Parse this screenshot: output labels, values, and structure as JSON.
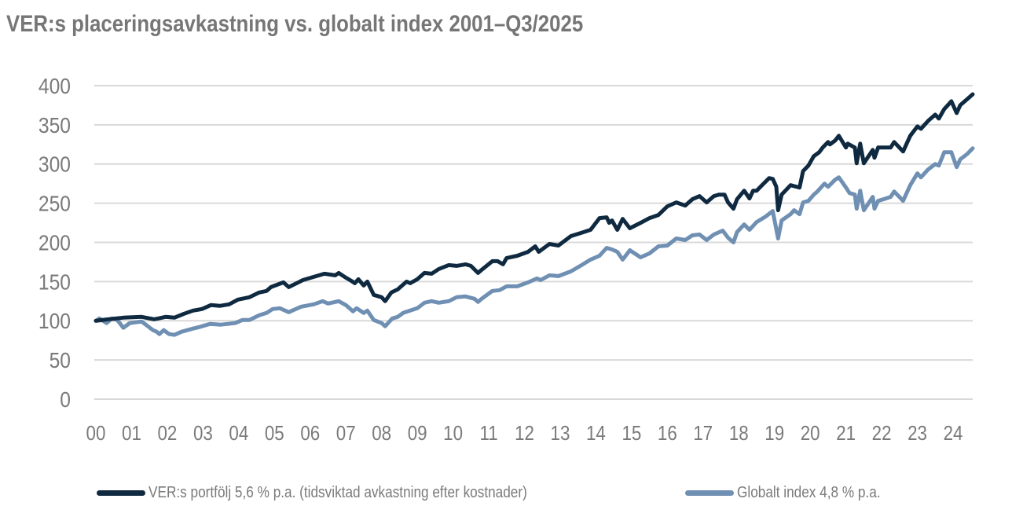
{
  "chart_data": {
    "type": "line",
    "title": "VER:s placeringsavkastning vs. globalt index 2001–Q3/2025",
    "xlabel": "",
    "ylabel": "",
    "ylim": [
      0,
      400
    ],
    "xlim": [
      0,
      24.6
    ],
    "yticks": [
      0,
      50,
      100,
      150,
      200,
      250,
      300,
      350,
      400
    ],
    "xtick_labels": [
      "00",
      "01",
      "02",
      "03",
      "04",
      "05",
      "06",
      "07",
      "08",
      "09",
      "10",
      "11",
      "12",
      "13",
      "14",
      "15",
      "16",
      "17",
      "18",
      "19",
      "20",
      "21",
      "22",
      "23",
      "24"
    ],
    "grid": "horizontal",
    "legend_position": "bottom",
    "series": [
      {
        "name": "VER:s portfölj 5,6 % p.a. (tidsviktad avkastning efter kostnader)",
        "color": "#0f2a40",
        "x": [
          0,
          0.35,
          0.77,
          1.28,
          1.63,
          1.75,
          1.95,
          2.2,
          2.47,
          2.72,
          2.97,
          3.22,
          3.47,
          3.73,
          3.98,
          4.3,
          4.57,
          4.78,
          4.9,
          5.25,
          5.4,
          5.8,
          6.1,
          6.4,
          6.7,
          6.8,
          7.0,
          7.15,
          7.25,
          7.35,
          7.5,
          7.6,
          7.78,
          8.0,
          8.1,
          8.27,
          8.45,
          8.7,
          8.8,
          9.0,
          9.2,
          9.4,
          9.6,
          9.88,
          10.1,
          10.35,
          10.5,
          10.7,
          10.8,
          11.1,
          11.25,
          11.4,
          11.5,
          11.8,
          12.1,
          12.3,
          12.4,
          12.7,
          12.95,
          13.3,
          13.65,
          13.85,
          14.1,
          14.3,
          14.37,
          14.45,
          14.6,
          14.75,
          14.95,
          15.25,
          15.5,
          15.75,
          16.0,
          16.25,
          16.5,
          16.7,
          16.9,
          17.1,
          17.3,
          17.45,
          17.6,
          17.7,
          17.85,
          17.95,
          18.15,
          18.3,
          18.4,
          18.5,
          18.65,
          18.85,
          18.95,
          19.05,
          19.1,
          19.2,
          19.45,
          19.7,
          19.8,
          19.95,
          20.1,
          20.25,
          20.35,
          20.5,
          20.55,
          20.7,
          20.8,
          21.0,
          21.05,
          21.25,
          21.3,
          21.4,
          21.5,
          21.75,
          21.8,
          21.9,
          22.25,
          22.35,
          22.6,
          22.8,
          23.0,
          23.1,
          23.3,
          23.5,
          23.6,
          23.75,
          23.95,
          24.1,
          24.2,
          24.4,
          24.55
        ],
        "y": [
          100,
          102,
          104,
          105,
          102,
          103,
          105,
          104,
          109,
          113,
          115,
          120,
          119,
          121,
          127,
          130,
          136,
          138,
          143,
          149,
          143,
          152,
          156,
          160,
          158,
          161,
          155,
          151,
          148,
          153,
          145,
          150,
          133,
          130,
          125,
          136,
          140,
          150,
          148,
          153,
          161,
          160,
          166,
          171,
          170,
          172,
          170,
          161,
          165,
          176,
          176,
          172,
          180,
          183,
          188,
          195,
          188,
          198,
          196,
          208,
          213,
          216,
          231,
          232,
          225,
          228,
          216,
          230,
          218,
          225,
          231,
          235,
          246,
          251,
          247,
          255,
          259,
          251,
          259,
          261,
          261,
          251,
          243,
          255,
          266,
          256,
          266,
          266,
          273,
          282,
          281,
          271,
          241,
          261,
          273,
          270,
          291,
          298,
          310,
          315,
          321,
          328,
          325,
          330,
          336,
          321,
          326,
          321,
          301,
          326,
          301,
          318,
          308,
          321,
          321,
          328,
          316,
          336,
          348,
          345,
          355,
          363,
          358,
          370,
          380,
          365,
          375,
          383,
          389
        ]
      },
      {
        "name": "Globalt index 4,8 % p.a.",
        "color": "#6f8fb3",
        "x": [
          0,
          0.1,
          0.3,
          0.45,
          0.6,
          0.77,
          0.95,
          1.28,
          1.4,
          1.6,
          1.7,
          1.78,
          1.9,
          2.05,
          2.2,
          2.4,
          2.72,
          2.9,
          3.2,
          3.5,
          3.9,
          4.1,
          4.3,
          4.57,
          4.78,
          4.95,
          5.15,
          5.4,
          5.75,
          6.1,
          6.35,
          6.5,
          6.8,
          7.0,
          7.2,
          7.3,
          7.5,
          7.6,
          7.78,
          8.0,
          8.1,
          8.3,
          8.45,
          8.6,
          8.8,
          9.0,
          9.2,
          9.4,
          9.6,
          9.88,
          10.1,
          10.35,
          10.6,
          10.7,
          10.8,
          11.1,
          11.3,
          11.5,
          11.8,
          12.1,
          12.35,
          12.45,
          12.7,
          12.95,
          13.3,
          13.6,
          13.85,
          14.1,
          14.3,
          14.45,
          14.6,
          14.75,
          14.95,
          15.25,
          15.5,
          15.75,
          16.0,
          16.25,
          16.5,
          16.7,
          16.9,
          17.1,
          17.3,
          17.55,
          17.7,
          17.85,
          17.95,
          18.15,
          18.3,
          18.5,
          18.75,
          18.95,
          19.1,
          19.2,
          19.45,
          19.55,
          19.7,
          19.8,
          19.95,
          20.1,
          20.2,
          20.4,
          20.5,
          20.7,
          20.8,
          21.0,
          21.1,
          21.25,
          21.3,
          21.4,
          21.5,
          21.75,
          21.8,
          21.9,
          22.05,
          22.25,
          22.35,
          22.6,
          22.8,
          23.0,
          23.1,
          23.3,
          23.5,
          23.6,
          23.75,
          23.95,
          24.1,
          24.2,
          24.4,
          24.55
        ],
        "y": [
          100,
          103,
          97,
          103,
          101,
          91,
          97,
          99,
          95,
          88,
          86,
          83,
          88,
          83,
          82,
          86,
          90,
          92,
          96,
          95,
          97,
          101,
          101,
          107,
          110,
          115,
          116,
          111,
          118,
          121,
          125,
          122,
          125,
          120,
          112,
          116,
          110,
          113,
          101,
          97,
          93,
          103,
          105,
          110,
          113,
          116,
          123,
          125,
          123,
          125,
          130,
          131,
          128,
          124,
          128,
          138,
          139,
          144,
          144,
          149,
          154,
          152,
          158,
          157,
          163,
          171,
          178,
          183,
          193,
          191,
          188,
          178,
          190,
          181,
          186,
          195,
          196,
          205,
          203,
          209,
          210,
          203,
          210,
          215,
          206,
          200,
          213,
          223,
          216,
          226,
          233,
          240,
          205,
          228,
          236,
          241,
          236,
          251,
          253,
          261,
          265,
          275,
          271,
          280,
          283,
          270,
          263,
          261,
          243,
          266,
          241,
          258,
          243,
          253,
          255,
          258,
          265,
          253,
          273,
          288,
          283,
          293,
          300,
          298,
          315,
          315,
          296,
          306,
          313,
          320
        ]
      }
    ]
  }
}
